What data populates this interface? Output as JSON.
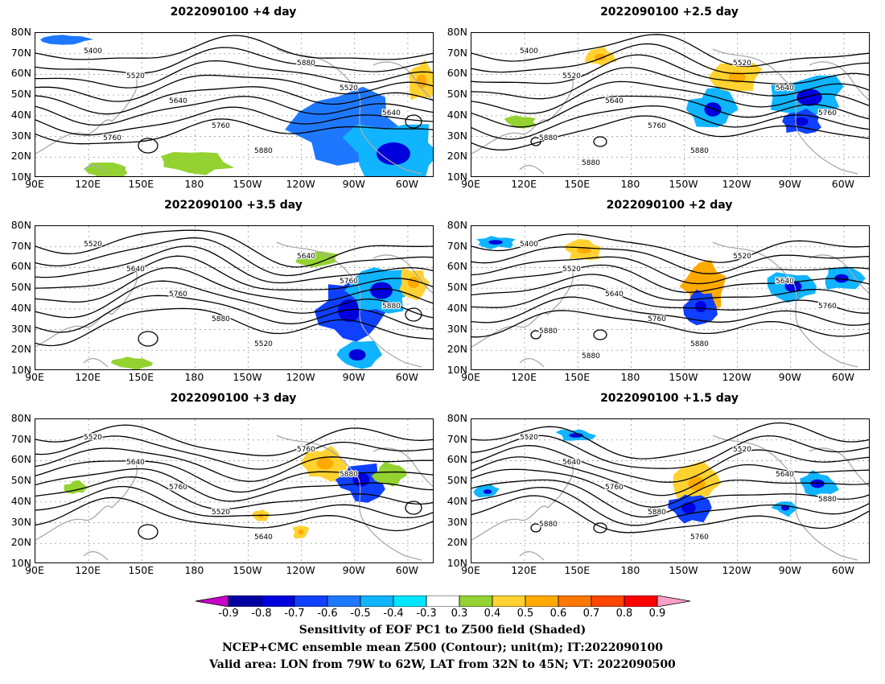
{
  "panels": [
    {
      "title": "2022090100 +4 day",
      "contours": [
        "5400",
        "5520",
        "5640",
        "5760",
        "5880",
        "5880",
        "5520",
        "5640",
        "5760"
      ]
    },
    {
      "title": "2022090100 +2.5 day",
      "contours": [
        "5400",
        "5520",
        "5640",
        "5760",
        "5880",
        "5520",
        "5640",
        "5760",
        "5880",
        "5880"
      ]
    },
    {
      "title": "2022090100 +3.5 day",
      "contours": [
        "5520",
        "5640",
        "5760",
        "5880",
        "5520",
        "5640",
        "5760",
        "5880"
      ]
    },
    {
      "title": "2022090100 +2 day",
      "contours": [
        "5400",
        "5520",
        "5640",
        "5760",
        "5880",
        "5520",
        "5640",
        "5760",
        "5880",
        "5880"
      ]
    },
    {
      "title": "2022090100 +3 day",
      "contours": [
        "5520",
        "5640",
        "5760",
        "5520",
        "5640",
        "5760",
        "5880"
      ]
    },
    {
      "title": "2022090100 +1.5 day",
      "contours": [
        "5520",
        "5640",
        "5760",
        "5880",
        "5760",
        "5520",
        "5640",
        "5880",
        "5880"
      ]
    }
  ],
  "lat_labels": [
    "80N",
    "70N",
    "60N",
    "50N",
    "40N",
    "30N",
    "20N",
    "10N"
  ],
  "lon_labels": [
    "90E",
    "120E",
    "150E",
    "180",
    "150W",
    "120W",
    "90W",
    "60W"
  ],
  "colorbar": {
    "ticks": [
      "-0.9",
      "-0.8",
      "-0.7",
      "-0.6",
      "-0.5",
      "-0.4",
      "-0.3",
      "0.3",
      "0.4",
      "0.5",
      "0.6",
      "0.7",
      "0.8",
      "0.9"
    ],
    "colors": [
      "#0000a0",
      "#0000dd",
      "#1040ff",
      "#1e78ff",
      "#10b4ff",
      "#00e6ff",
      "#ffffff",
      "#94d232",
      "#ffd232",
      "#ffaa00",
      "#ff7800",
      "#ff4600",
      "#ff0000"
    ],
    "left_end_color": "#c800c8",
    "right_end_color": "#ffa0c8"
  },
  "caption": {
    "line1": "Sensitivity of EOF PC1 to Z500 field (Shaded)",
    "line2": "NCEP+CMC ensemble mean Z500 (Contour); unit(m); IT:2022090100",
    "line3": "Valid area: LON from 79W to 62W, LAT from 32N to 45N; VT: 2022090500"
  }
}
